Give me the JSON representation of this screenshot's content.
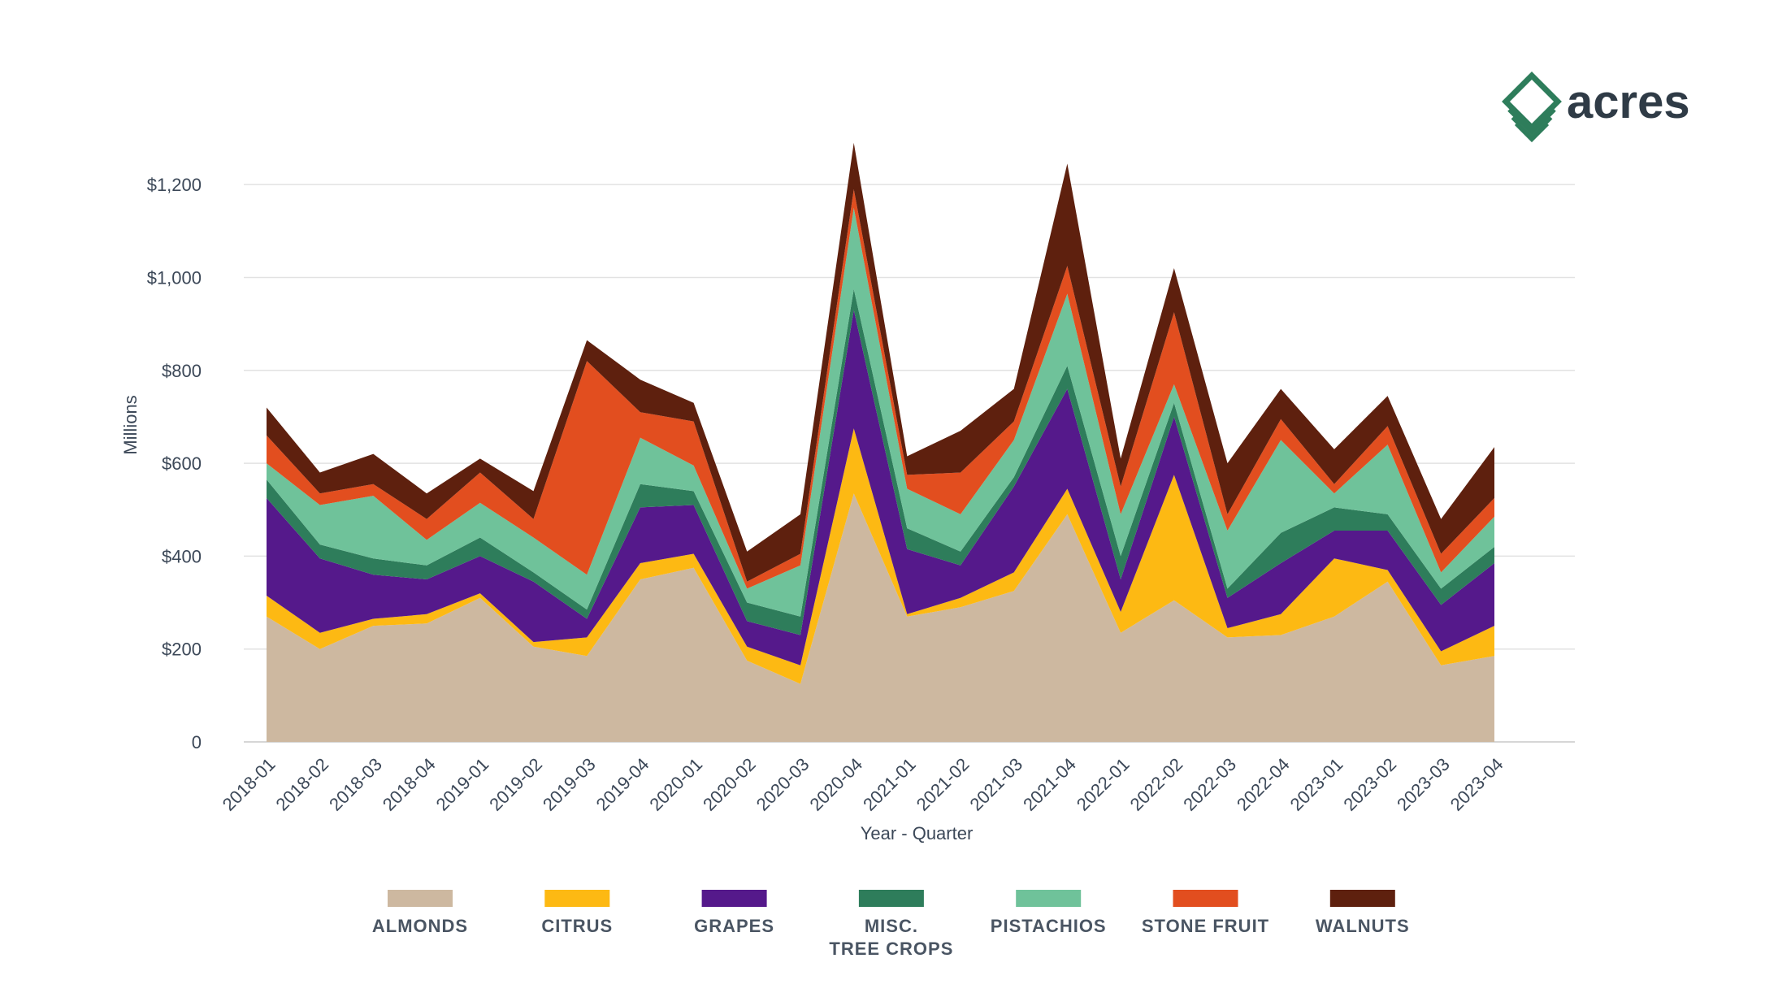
{
  "brand": {
    "logo_text": "acres",
    "logo_color": "#2e7d5b"
  },
  "chart_data": {
    "type": "area",
    "stacked": true,
    "xlabel": "Year - Quarter",
    "ylabel": "Millions",
    "ylim": [
      0,
      1300
    ],
    "y_ticks": [
      0,
      200,
      400,
      600,
      800,
      1000,
      1200
    ],
    "y_tick_labels": [
      "0",
      "$200",
      "$400",
      "$600",
      "$800",
      "$1,000",
      "$1,200"
    ],
    "grid": true,
    "legend_position": "bottom",
    "categories": [
      "2018-01",
      "2018-02",
      "2018-03",
      "2018-04",
      "2019-01",
      "2019-02",
      "2019-03",
      "2019-04",
      "2020-01",
      "2020-02",
      "2020-03",
      "2020-04",
      "2021-01",
      "2021-02",
      "2021-03",
      "2021-04",
      "2022-01",
      "2022-02",
      "2022-03",
      "2022-04",
      "2023-01",
      "2023-02",
      "2023-03",
      "2023-04"
    ],
    "series": [
      {
        "name": "ALMONDS",
        "color": "#cdb8a0",
        "values": [
          270,
          200,
          250,
          255,
          310,
          205,
          185,
          350,
          375,
          175,
          125,
          535,
          270,
          290,
          325,
          490,
          235,
          305,
          225,
          230,
          270,
          345,
          165,
          185
        ]
      },
      {
        "name": "CITRUS",
        "color": "#fdb913",
        "values": [
          45,
          35,
          15,
          20,
          10,
          10,
          40,
          35,
          30,
          30,
          40,
          140,
          5,
          20,
          40,
          55,
          45,
          270,
          20,
          45,
          125,
          25,
          30,
          65
        ]
      },
      {
        "name": "GRAPES",
        "color": "#55198b",
        "values": [
          210,
          160,
          95,
          75,
          80,
          130,
          40,
          120,
          105,
          55,
          65,
          255,
          140,
          70,
          185,
          215,
          70,
          125,
          65,
          110,
          60,
          85,
          100,
          135
        ]
      },
      {
        "name": "MISC. TREE CROPS",
        "color": "#2e7d5b",
        "values": [
          40,
          30,
          35,
          30,
          40,
          20,
          20,
          50,
          30,
          40,
          40,
          45,
          45,
          30,
          20,
          50,
          50,
          30,
          20,
          65,
          50,
          35,
          35,
          35
        ]
      },
      {
        "name": "PISTACHIOS",
        "color": "#6fc29a",
        "values": [
          35,
          85,
          135,
          55,
          75,
          75,
          75,
          100,
          55,
          30,
          110,
          175,
          85,
          80,
          80,
          155,
          90,
          40,
          125,
          200,
          30,
          150,
          35,
          65
        ]
      },
      {
        "name": "STONE FRUIT",
        "color": "#e24e1f",
        "values": [
          60,
          25,
          25,
          45,
          65,
          40,
          460,
          55,
          95,
          15,
          25,
          40,
          30,
          90,
          40,
          60,
          60,
          155,
          35,
          45,
          20,
          40,
          40,
          40
        ]
      },
      {
        "name": "WALNUTS",
        "color": "#5e200e",
        "values": [
          60,
          45,
          65,
          55,
          30,
          60,
          45,
          70,
          40,
          65,
          85,
          100,
          40,
          90,
          70,
          220,
          60,
          95,
          110,
          65,
          75,
          65,
          75,
          110
        ]
      }
    ]
  }
}
